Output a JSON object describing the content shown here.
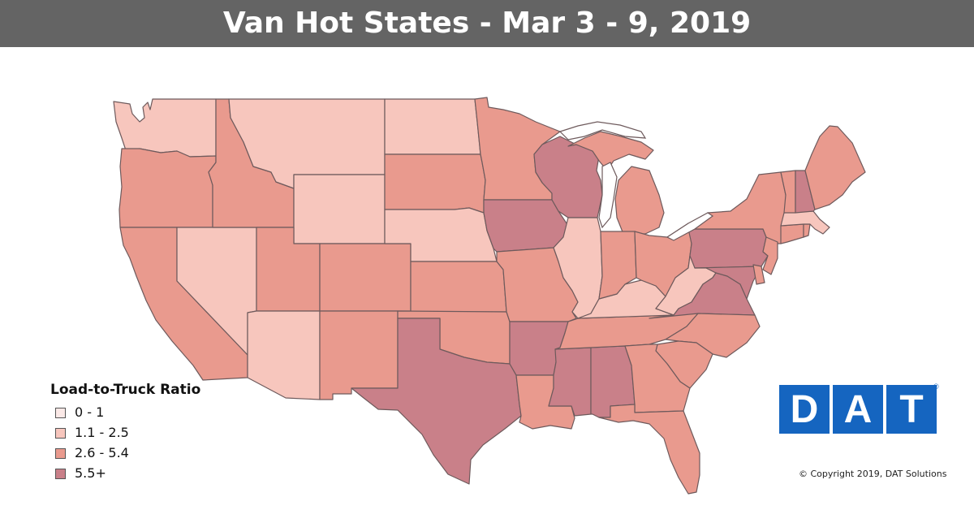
{
  "title": "Van Hot States - Mar 3 - 9, 2019",
  "colors": {
    "title_bar": "#646464",
    "background": "#ffffff",
    "state_border": "#6e5a5c",
    "logo_blue": "#1565c0",
    "lake_white": "#ffffff"
  },
  "legend": {
    "title": "Load-to-Truck Ratio",
    "items": [
      {
        "label": "0 - 1",
        "color": "#fbe9e7"
      },
      {
        "label": "1.1 - 2.5",
        "color": "#f7c6bd"
      },
      {
        "label": "2.6 - 5.4",
        "color": "#e99a8e"
      },
      {
        "label": "5.5+",
        "color": "#c98089"
      }
    ]
  },
  "state_categories": {
    "WA": 1,
    "MT": 1,
    "ND": 1,
    "WY": 1,
    "NE": 1,
    "NV": 1,
    "AZ": 1,
    "IL": 1,
    "KY": 1,
    "WV": 1,
    "MA": 1,
    "OR": 2,
    "ID": 2,
    "SD": 2,
    "MN": 2,
    "CA": 2,
    "UT": 2,
    "CO": 2,
    "KS": 2,
    "MO": 2,
    "NM": 2,
    "OK": 2,
    "LA": 2,
    "TN": 2,
    "NC": 2,
    "SC": 2,
    "GA": 2,
    "FL": 2,
    "IN": 2,
    "OH": 2,
    "MI": 2,
    "NY": 2,
    "VT": 2,
    "ME": 2,
    "CT": 2,
    "RI": 2,
    "NJ": 2,
    "DE": 2,
    "WI": 3,
    "IA": 3,
    "TX": 3,
    "AR": 3,
    "MS": 3,
    "AL": 3,
    "PA": 3,
    "VA": 3,
    "NH": 3,
    "MD": 3
  },
  "logo": {
    "letters": [
      "D",
      "A",
      "T"
    ],
    "registered": "®"
  },
  "copyright": "© Copyright 2019, DAT Solutions"
}
